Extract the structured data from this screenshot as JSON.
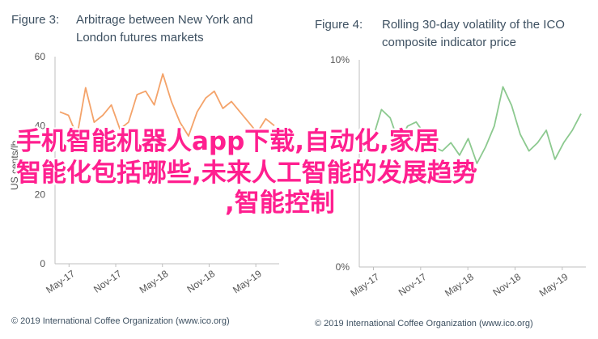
{
  "chart_data": [
    {
      "type": "line",
      "figure_label": "Figure 3:",
      "title": "Arbitrage between New York and London futures markets",
      "xlabel": "",
      "ylabel": "US cents/lb",
      "ylim": [
        0,
        60
      ],
      "yticks": [
        0,
        20,
        40,
        60
      ],
      "xticks": [
        "May-17",
        "Nov-17",
        "May-18",
        "Nov-18",
        "May-19"
      ],
      "grid": false,
      "color": "#f4a36a",
      "series": [
        {
          "x": [
            "2017-05",
            "2017-06",
            "2017-07",
            "2017-08",
            "2017-09",
            "2017-10",
            "2017-11",
            "2017-12",
            "2018-01",
            "2018-02",
            "2018-03",
            "2018-04",
            "2018-05",
            "2018-06",
            "2018-07",
            "2018-08",
            "2018-09",
            "2018-10",
            "2018-11",
            "2018-12",
            "2019-01",
            "2019-02",
            "2019-03",
            "2019-04",
            "2019-05",
            "2019-06"
          ],
          "values": [
            44,
            43,
            37,
            51,
            41,
            43,
            46,
            39,
            41,
            49,
            50,
            46,
            55,
            47,
            41,
            37,
            44,
            48,
            50,
            45,
            47,
            44,
            41,
            38,
            42,
            40
          ]
        }
      ],
      "footer": "© 2019 International Coffee Organization (www.ico.org)"
    },
    {
      "type": "line",
      "figure_label": "Figure 4:",
      "title": "Rolling 30-day volatility of the ICO composite indicator price",
      "xlabel": "",
      "ylabel": "",
      "ylim": [
        0,
        10
      ],
      "ytick_labels": [
        "0%",
        "10%"
      ],
      "yticks": [
        0,
        10
      ],
      "xticks": [
        "May-17",
        "Nov-17",
        "May-18",
        "Nov-18",
        "May-19"
      ],
      "grid": false,
      "color": "#8cc98f",
      "series": [
        {
          "x": [
            "2017-05",
            "2017-06",
            "2017-07",
            "2017-08",
            "2017-09",
            "2017-10",
            "2017-11",
            "2017-12",
            "2018-01",
            "2018-02",
            "2018-03",
            "2018-04",
            "2018-05",
            "2018-06",
            "2018-07",
            "2018-08",
            "2018-09",
            "2018-10",
            "2018-11",
            "2018-12",
            "2019-01",
            "2019-02",
            "2019-03",
            "2019-04",
            "2019-05",
            "2019-06"
          ],
          "values": [
            5.6,
            6.2,
            7.6,
            7.2,
            6.0,
            6.8,
            7.0,
            6.4,
            5.8,
            5.6,
            6.0,
            5.4,
            6.2,
            5.0,
            5.8,
            6.8,
            8.7,
            7.8,
            6.4,
            5.6,
            6.0,
            6.6,
            5.2,
            6.0,
            6.6,
            7.4
          ]
        }
      ],
      "footer": "© 2019 International Coffee Organization (www.ico.org)"
    }
  ],
  "overlay": {
    "line1": "手机智能机器人app下载,自动化,家居",
    "line2": "智能化包括哪些,未来人工智能的发展趋势",
    "line3": ",智能控制"
  }
}
